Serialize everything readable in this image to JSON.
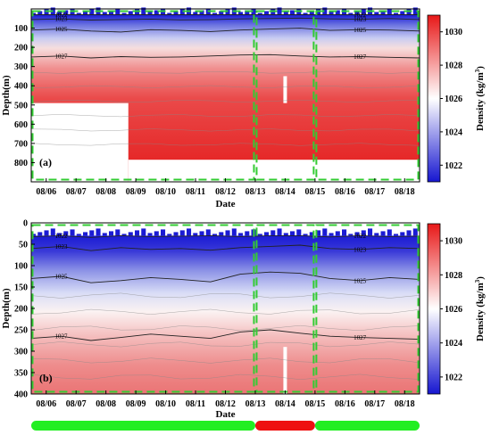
{
  "chart_data": [
    {
      "type": "heatmap",
      "panel_label": "(a)",
      "xlabel": "Date",
      "ylabel": "Depth(m)",
      "x_ticks": [
        "08/06",
        "08/07",
        "08/08",
        "08/09",
        "08/10",
        "08/11",
        "08/12",
        "08/13",
        "08/14",
        "08/15",
        "08/16",
        "08/17",
        "08/18"
      ],
      "x_range": [
        "08/05 12:00",
        "08/18 12:00"
      ],
      "y_ticks": [
        100,
        200,
        300,
        400,
        500,
        600,
        700,
        800
      ],
      "ylim": [
        900,
        0
      ],
      "y_reversed": true,
      "colorbar_label": "Density (kg/m",
      "colorbar_unit_exp": "3",
      "colorbar_ticks": [
        1022,
        1024,
        1026,
        1028,
        1030
      ],
      "colorbar_range": [
        1021,
        1031
      ],
      "colormap": [
        "#1616d0",
        "#ffffff",
        "#e81818"
      ],
      "contour_labels": [
        "1022",
        "1023",
        "1025",
        "1027"
      ],
      "contours": [
        {
          "level": "1022",
          "label": "1022",
          "depths": [
            30,
            30,
            30,
            30,
            30,
            30,
            30,
            30,
            30,
            30,
            30,
            30,
            30,
            30
          ]
        },
        {
          "level": "1023",
          "label": "1023",
          "depths": [
            55,
            52,
            58,
            55,
            53,
            57,
            56,
            52,
            50,
            48,
            52,
            54,
            50,
            55
          ]
        },
        {
          "level": "1025",
          "label": "1025",
          "depths": [
            110,
            105,
            115,
            120,
            108,
            112,
            118,
            110,
            105,
            100,
            112,
            108,
            110,
            115
          ]
        },
        {
          "level": "1027",
          "label": "1027",
          "depths": [
            250,
            245,
            255,
            248,
            252,
            250,
            245,
            240,
            238,
            245,
            250,
            248,
            252,
            255
          ]
        }
      ],
      "valid_region": "depth range 30-780 m for 08/05-08/08, then 30-780 m to 08/18; data gap below about 490 m before 08/08 18:00",
      "data_gap": {
        "x_from": "08/05 12:00",
        "x_to": "08/08 18:00",
        "depth_from": 490
      },
      "bottom_depths": [
        490,
        490,
        490,
        780,
        780,
        785,
        780,
        780,
        790,
        785,
        780,
        785,
        780,
        780
      ]
    },
    {
      "type": "heatmap",
      "panel_label": "(b)",
      "xlabel": "Date",
      "ylabel": "Depth(m)",
      "x_ticks": [
        "08/06",
        "08/07",
        "08/08",
        "08/09",
        "08/10",
        "08/11",
        "08/12",
        "08/13",
        "08/14",
        "08/15",
        "08/16",
        "08/17",
        "08/18"
      ],
      "x_range": [
        "08/05 12:00",
        "08/18 12:00"
      ],
      "y_ticks": [
        0,
        50,
        100,
        150,
        200,
        250,
        300,
        350,
        400
      ],
      "ylim": [
        400,
        0
      ],
      "y_reversed": true,
      "colorbar_label": "Density (kg/m",
      "colorbar_unit_exp": "3",
      "colorbar_ticks": [
        1022,
        1024,
        1026,
        1028,
        1030
      ],
      "colorbar_range": [
        1021,
        1031
      ],
      "colormap": [
        "#1616d0",
        "#ffffff",
        "#e81818"
      ],
      "contour_labels": [
        "1022",
        "1023",
        "1025",
        "1027"
      ],
      "contours": [
        {
          "level": "1022",
          "label": "1022",
          "depths": [
            32,
            30,
            34,
            30,
            32,
            31,
            30,
            32,
            30,
            30,
            33,
            30,
            32,
            31
          ]
        },
        {
          "level": "1023",
          "label": "1023",
          "depths": [
            60,
            55,
            65,
            58,
            62,
            60,
            64,
            58,
            55,
            52,
            60,
            62,
            58,
            60
          ]
        },
        {
          "level": "1025",
          "label": "1025",
          "depths": [
            130,
            125,
            140,
            135,
            128,
            132,
            138,
            120,
            115,
            118,
            130,
            135,
            128,
            132
          ]
        },
        {
          "level": "1027",
          "label": "1027",
          "depths": [
            270,
            265,
            275,
            268,
            260,
            265,
            270,
            255,
            250,
            258,
            265,
            268,
            270,
            272
          ]
        }
      ]
    }
  ],
  "phases": [
    {
      "from": "08/05 12:00",
      "to": "08/13 00:00",
      "color": "#22ee22"
    },
    {
      "from": "08/13 00:00",
      "to": "08/15 00:00",
      "color": "#ee1111"
    },
    {
      "from": "08/15 00:00",
      "to": "08/18 12:00",
      "color": "#22ee22"
    }
  ],
  "highlight_boxes": [
    {
      "from": "08/05 12:00",
      "to": "08/13 00:00",
      "color": "#33cc33"
    },
    {
      "from": "08/13 00:00",
      "to": "08/15 00:00",
      "color": "#33cc33"
    },
    {
      "from": "08/15 00:00",
      "to": "08/18 12:00",
      "color": "#33cc33"
    }
  ]
}
